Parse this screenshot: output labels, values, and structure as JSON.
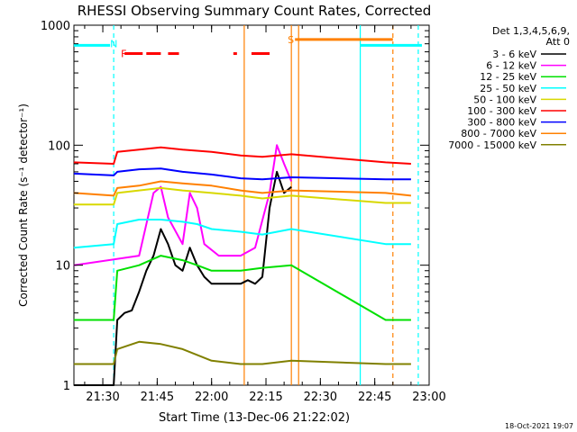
{
  "chart_data": {
    "type": "line",
    "title": "RHESSI Observing Summary Count Rates, Corrected",
    "xlabel": "Start Time (13-Dec-06 21:22:02)",
    "ylabel": "Corrected Count Rate (s⁻¹ detector⁻¹)",
    "x_axis": {
      "type": "time",
      "range": [
        "21:22:02",
        "23:00:00"
      ],
      "ticks": [
        "21:30",
        "21:45",
        "22:00",
        "22:15",
        "22:30",
        "22:45",
        "23:00"
      ]
    },
    "y_axis": {
      "scale": "log",
      "range": [
        1,
        1000
      ],
      "ticks": [
        "1",
        "10",
        "100",
        "1000"
      ]
    },
    "legend": {
      "placement": "top-right",
      "header": [
        "Det 1,3,4,5,6,9,",
        "Att 0"
      ]
    },
    "series": [
      {
        "name": "3 - 6 keV",
        "color": "#000000",
        "points": [
          [
            "21:22",
            1.0
          ],
          [
            "21:33",
            1.0
          ],
          [
            "21:34",
            3.5
          ],
          [
            "21:36",
            4.0
          ],
          [
            "21:38",
            4.2
          ],
          [
            "21:40",
            6.0
          ],
          [
            "21:42",
            9.0
          ],
          [
            "21:44",
            12.0
          ],
          [
            "21:46",
            20.0
          ],
          [
            "21:48",
            15.0
          ],
          [
            "21:50",
            10.0
          ],
          [
            "21:52",
            9.0
          ],
          [
            "21:54",
            14.0
          ],
          [
            "21:56",
            10.0
          ],
          [
            "21:58",
            8.0
          ],
          [
            "22:00",
            7.0
          ],
          [
            "22:04",
            7.0
          ],
          [
            "22:08",
            7.0
          ],
          [
            "22:10",
            7.5
          ],
          [
            "22:12",
            7.0
          ],
          [
            "22:14",
            8.0
          ],
          [
            "22:16",
            30.0
          ],
          [
            "22:18",
            60.0
          ],
          [
            "22:20",
            40.0
          ],
          [
            "22:22",
            45.0
          ]
        ]
      },
      {
        "name": "6 - 12 keV",
        "color": "#ff00ff",
        "points": [
          [
            "21:22",
            10.0
          ],
          [
            "21:40",
            12.0
          ],
          [
            "21:44",
            40.0
          ],
          [
            "21:46",
            45.0
          ],
          [
            "21:48",
            25.0
          ],
          [
            "21:52",
            15.0
          ],
          [
            "21:54",
            40.0
          ],
          [
            "21:56",
            30.0
          ],
          [
            "21:58",
            15.0
          ],
          [
            "22:02",
            12.0
          ],
          [
            "22:08",
            12.0
          ],
          [
            "22:12",
            14.0
          ],
          [
            "22:16",
            40.0
          ],
          [
            "22:18",
            100.0
          ],
          [
            "22:20",
            70.0
          ],
          [
            "22:22",
            50.0
          ]
        ]
      },
      {
        "name": "12 - 25 keV",
        "color": "#00e000",
        "points": [
          [
            "21:22",
            3.5
          ],
          [
            "21:33",
            3.5
          ],
          [
            "21:34",
            9.0
          ],
          [
            "21:40",
            10.0
          ],
          [
            "21:46",
            12.0
          ],
          [
            "21:52",
            11.0
          ],
          [
            "21:56",
            10.0
          ],
          [
            "22:00",
            9.0
          ],
          [
            "22:08",
            9.0
          ],
          [
            "22:14",
            9.5
          ],
          [
            "22:22",
            10.0
          ],
          [
            "22:48",
            3.5
          ],
          [
            "22:55",
            3.5
          ]
        ]
      },
      {
        "name": "25 - 50 keV",
        "color": "#00ffff",
        "points": [
          [
            "21:22",
            14.0
          ],
          [
            "21:33",
            15.0
          ],
          [
            "21:34",
            22.0
          ],
          [
            "21:40",
            24.0
          ],
          [
            "21:46",
            24.0
          ],
          [
            "21:52",
            23.0
          ],
          [
            "21:56",
            22.0
          ],
          [
            "22:00",
            20.0
          ],
          [
            "22:08",
            19.0
          ],
          [
            "22:14",
            18.0
          ],
          [
            "22:22",
            20.0
          ],
          [
            "22:48",
            15.0
          ],
          [
            "22:55",
            15.0
          ]
        ]
      },
      {
        "name": "50 - 100 keV",
        "color": "#d8d800",
        "points": [
          [
            "21:22",
            32.0
          ],
          [
            "21:33",
            32.0
          ],
          [
            "21:34",
            40.0
          ],
          [
            "21:46",
            44.0
          ],
          [
            "21:52",
            42.0
          ],
          [
            "22:00",
            40.0
          ],
          [
            "22:08",
            38.0
          ],
          [
            "22:14",
            36.0
          ],
          [
            "22:22",
            38.0
          ],
          [
            "22:48",
            33.0
          ],
          [
            "22:55",
            33.0
          ]
        ]
      },
      {
        "name": "100 - 300 keV",
        "color": "#ff0000",
        "points": [
          [
            "21:22",
            72.0
          ],
          [
            "21:33",
            70.0
          ],
          [
            "21:34",
            88.0
          ],
          [
            "21:40",
            92.0
          ],
          [
            "21:46",
            96.0
          ],
          [
            "21:52",
            92.0
          ],
          [
            "22:00",
            88.0
          ],
          [
            "22:08",
            82.0
          ],
          [
            "22:14",
            80.0
          ],
          [
            "22:22",
            84.0
          ],
          [
            "22:48",
            72.0
          ],
          [
            "22:55",
            70.0
          ]
        ]
      },
      {
        "name": "300 - 800 keV",
        "color": "#0000ff",
        "points": [
          [
            "21:22",
            58.0
          ],
          [
            "21:33",
            56.0
          ],
          [
            "21:34",
            60.0
          ],
          [
            "21:40",
            63.0
          ],
          [
            "21:46",
            64.0
          ],
          [
            "21:52",
            60.0
          ],
          [
            "22:00",
            57.0
          ],
          [
            "22:08",
            53.0
          ],
          [
            "22:14",
            52.0
          ],
          [
            "22:22",
            54.0
          ],
          [
            "22:48",
            52.0
          ],
          [
            "22:55",
            52.0
          ]
        ]
      },
      {
        "name": "800 - 7000 keV",
        "color": "#ff8000",
        "points": [
          [
            "21:22",
            40.0
          ],
          [
            "21:33",
            38.0
          ],
          [
            "21:34",
            44.0
          ],
          [
            "21:40",
            46.0
          ],
          [
            "21:46",
            50.0
          ],
          [
            "21:52",
            48.0
          ],
          [
            "22:00",
            46.0
          ],
          [
            "22:08",
            42.0
          ],
          [
            "22:14",
            40.0
          ],
          [
            "22:22",
            42.0
          ],
          [
            "22:48",
            40.0
          ],
          [
            "22:55",
            38.0
          ]
        ]
      },
      {
        "name": "7000 - 15000 keV",
        "color": "#808000",
        "points": [
          [
            "21:22",
            1.5
          ],
          [
            "21:33",
            1.5
          ],
          [
            "21:34",
            2.0
          ],
          [
            "21:40",
            2.3
          ],
          [
            "21:46",
            2.2
          ],
          [
            "21:52",
            2.0
          ],
          [
            "22:00",
            1.6
          ],
          [
            "22:08",
            1.5
          ],
          [
            "22:14",
            1.5
          ],
          [
            "22:22",
            1.6
          ],
          [
            "22:48",
            1.5
          ],
          [
            "22:55",
            1.5
          ]
        ]
      }
    ],
    "annotations": [
      {
        "label": "N",
        "color": "#00ffff",
        "x": "21:33",
        "y": 700
      },
      {
        "label": "F",
        "color": "#ff0000",
        "x": "21:36",
        "y": 580
      },
      {
        "label": "S",
        "color": "#ff8000",
        "x": "22:22",
        "y": 760
      }
    ],
    "intervals": [
      {
        "color": "#00ffff",
        "from": "21:22",
        "to": "21:32",
        "y": 680
      },
      {
        "color": "#ff0000",
        "from": "21:36",
        "to": "21:41",
        "y": 580
      },
      {
        "color": "#ff0000",
        "from": "21:42",
        "to": "21:46",
        "y": 580
      },
      {
        "color": "#ff0000",
        "from": "21:48",
        "to": "21:51",
        "y": 580
      },
      {
        "color": "#ff0000",
        "from": "22:06",
        "to": "22:07",
        "y": 580
      },
      {
        "color": "#ff0000",
        "from": "22:11",
        "to": "22:16",
        "y": 580
      },
      {
        "color": "#ff8000",
        "from": "22:23",
        "to": "22:50",
        "y": 760
      },
      {
        "color": "#00ffff",
        "from": "22:41",
        "to": "22:58",
        "y": 680
      }
    ],
    "vertical_lines": [
      {
        "color": "#00ffff",
        "x": "21:33",
        "style": "dashed"
      },
      {
        "color": "#ff8000",
        "x": "22:09",
        "style": "solid"
      },
      {
        "color": "#ff8000",
        "x": "22:22",
        "style": "solid"
      },
      {
        "color": "#ff8000",
        "x": "22:24",
        "style": "solid"
      },
      {
        "color": "#00ffff",
        "x": "22:41",
        "style": "solid"
      },
      {
        "color": "#ff8000",
        "x": "22:50",
        "style": "dashed"
      },
      {
        "color": "#00ffff",
        "x": "22:57",
        "style": "dashed"
      }
    ],
    "footer": "18-Oct-2021 19:07"
  }
}
